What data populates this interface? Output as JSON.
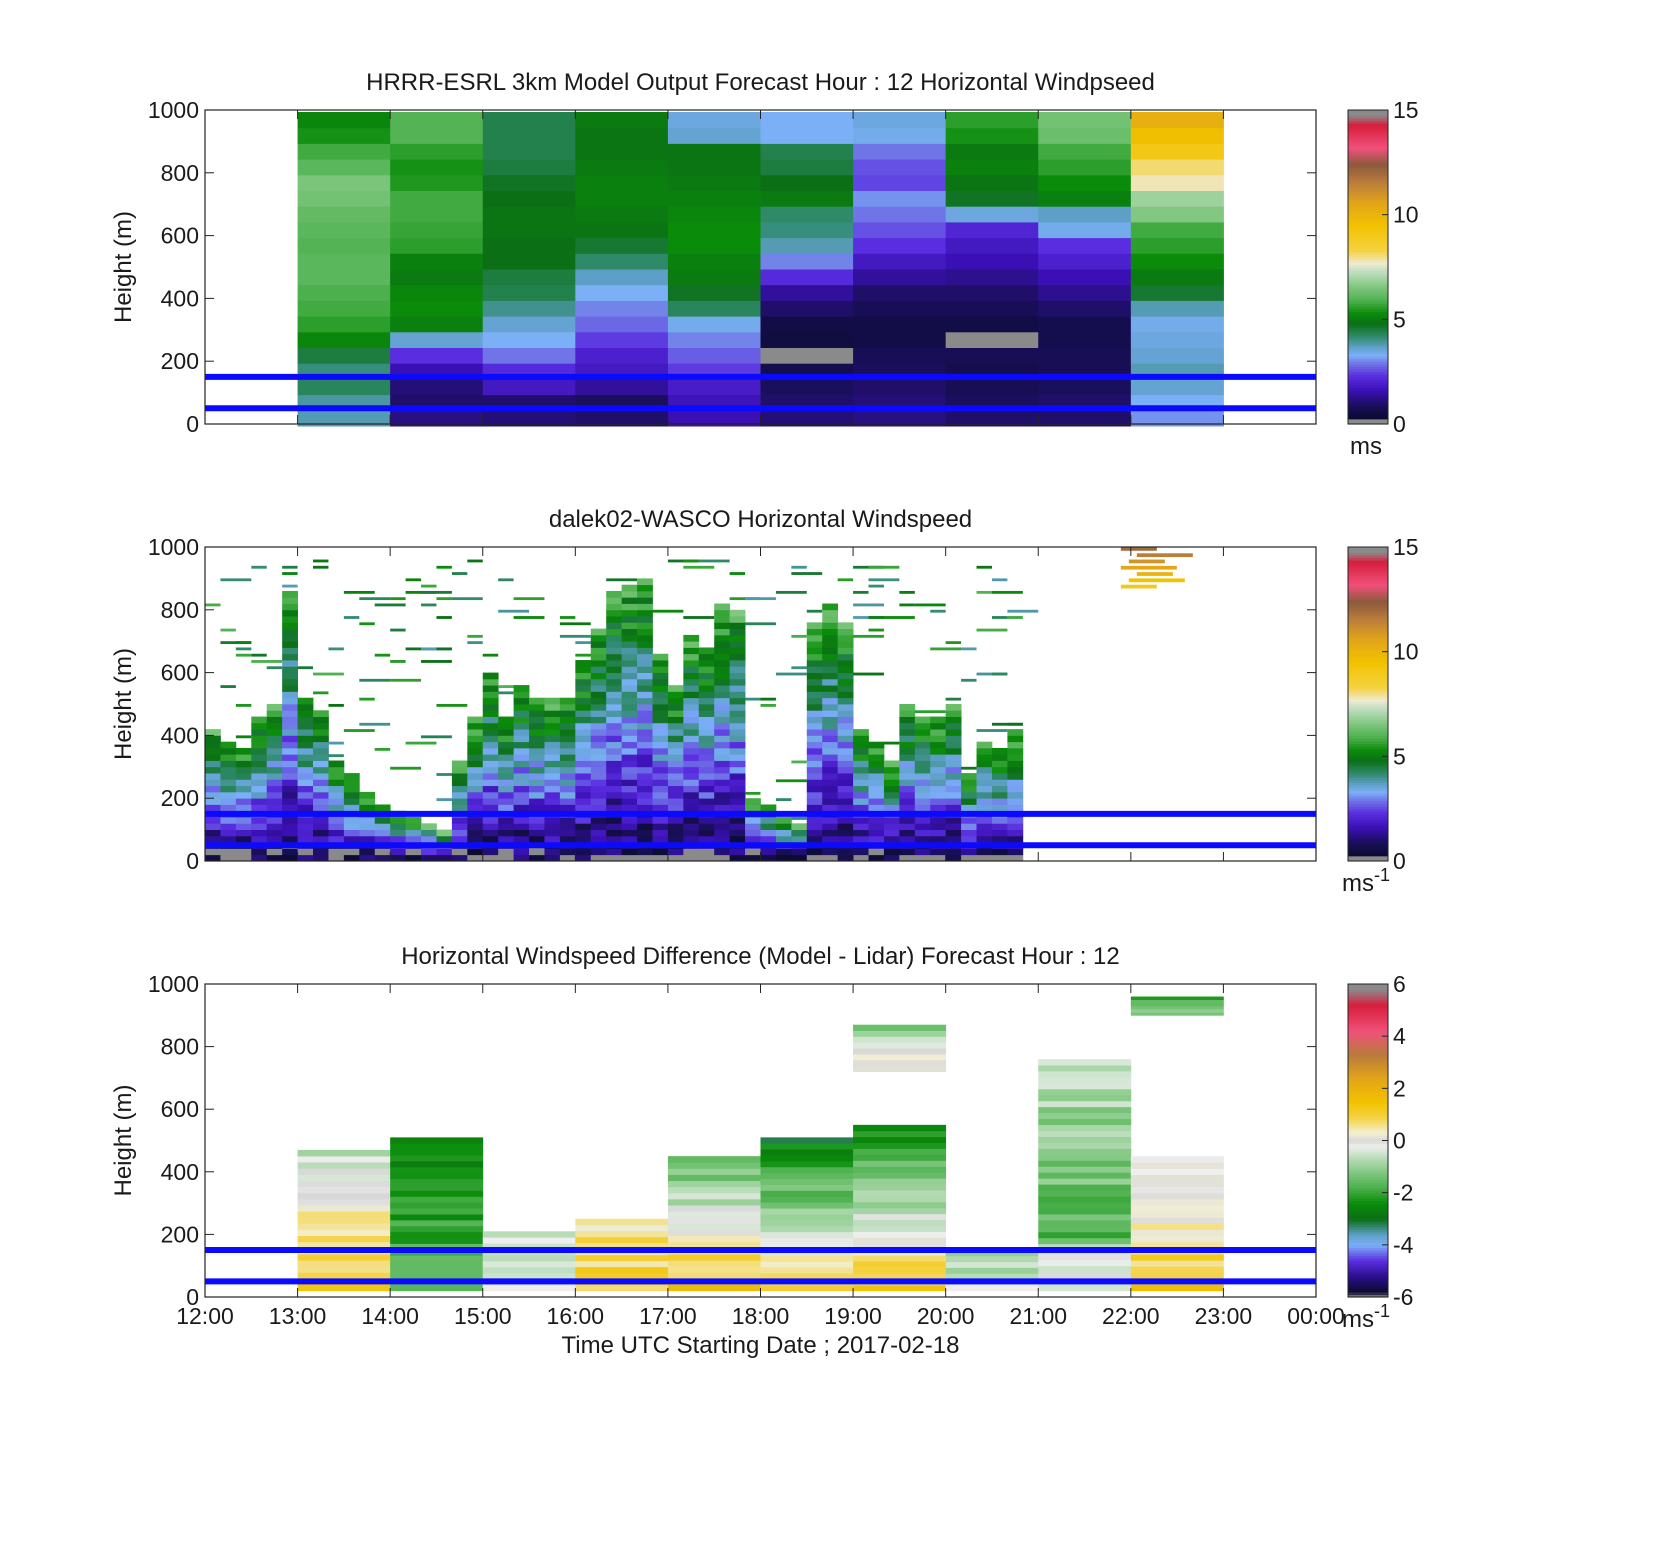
{
  "window": {
    "title": ""
  },
  "shared": {
    "xlabel": "Time UTC  Starting Date ; 2017-02-18",
    "ylabel": "Height (m)",
    "xticks": [
      "12:00",
      "13:00",
      "14:00",
      "15:00",
      "16:00",
      "17:00",
      "18:00",
      "19:00",
      "20:00",
      "21:00",
      "22:00",
      "23:00",
      "00:00"
    ],
    "yticks": [
      "0",
      "200",
      "400",
      "600",
      "800",
      "1000"
    ],
    "reference_lines_m": [
      50,
      150
    ],
    "reference_line_color": "#0a0aff"
  },
  "chart_data": [
    {
      "type": "heatmap",
      "title": "HRRR-ESRL 3km Model Output   Forecast Hour : 12 Horizontal Windpseed",
      "xlabel": "",
      "ylabel": "Height (m)",
      "ylim": [
        0,
        1000
      ],
      "colorbar": {
        "ticks": [
          "0",
          "5",
          "10",
          "15"
        ],
        "range": [
          0,
          15
        ],
        "unit_label": "ms",
        "unit_sup": ""
      },
      "cell_height_m": 50,
      "columns": [
        {
          "hour": "13:00",
          "values": [
            3.8,
            3.9,
            4.3,
            4.1,
            4.5,
            5.2,
            5.6,
            5.8,
            5.9,
            6.1,
            6.1,
            6.0,
            6.1,
            6.2,
            6.4,
            6.5,
            6.1,
            5.8,
            5.4,
            5.2
          ]
        },
        {
          "hour": "14:00",
          "values": [
            1.2,
            1.0,
            1.1,
            1.6,
            2.3,
            3.6,
            5.1,
            5.3,
            5.2,
            5.0,
            5.1,
            5.6,
            5.7,
            5.8,
            5.8,
            5.5,
            5.4,
            5.6,
            6.0,
            6.0
          ]
        },
        {
          "hour": "15:00",
          "values": [
            1.1,
            1.0,
            1.8,
            2.2,
            2.9,
            3.3,
            3.6,
            4.0,
            4.4,
            4.5,
            4.8,
            4.8,
            4.9,
            4.9,
            4.8,
            4.7,
            4.5,
            4.4,
            4.4,
            4.4
          ]
        },
        {
          "hour": "16:00",
          "values": [
            1.0,
            0.9,
            1.4,
            1.8,
            2.0,
            2.4,
            2.8,
            3.0,
            3.3,
            3.7,
            4.2,
            4.6,
            4.9,
            5.0,
            5.1,
            5.1,
            5.0,
            4.9,
            4.9,
            5.0
          ]
        },
        {
          "hour": "17:00",
          "values": [
            1.6,
            1.7,
            1.9,
            2.4,
            2.7,
            3.0,
            3.4,
            4.3,
            4.7,
            5.0,
            5.1,
            5.3,
            5.3,
            5.2,
            5.1,
            5.0,
            4.9,
            4.9,
            3.6,
            3.5
          ]
        },
        {
          "hour": "18:00",
          "values": [
            1.1,
            1.0,
            0.9,
            0.7,
            0.0,
            0.5,
            0.6,
            1.0,
            1.4,
            2.2,
            3.0,
            3.8,
            4.1,
            4.2,
            5.0,
            4.8,
            4.5,
            4.4,
            3.3,
            3.3
          ]
        },
        {
          "hour": "19:00",
          "values": [
            1.2,
            1.1,
            1.0,
            0.9,
            0.8,
            0.6,
            0.6,
            0.8,
            1.0,
            1.4,
            1.8,
            2.3,
            2.6,
            2.9,
            3.1,
            2.5,
            2.6,
            2.9,
            3.4,
            3.5
          ]
        },
        {
          "hour": "20:00",
          "values": [
            1.0,
            0.9,
            0.8,
            0.7,
            0.8,
            0.0,
            0.6,
            0.8,
            1.0,
            1.3,
            1.6,
            1.8,
            2.1,
            3.5,
            4.7,
            4.9,
            5.1,
            5.0,
            5.4,
            5.6
          ]
        },
        {
          "hour": "21:00",
          "values": [
            1.0,
            1.0,
            0.9,
            0.8,
            0.8,
            0.7,
            0.7,
            1.0,
            1.3,
            1.6,
            2.0,
            2.3,
            3.4,
            3.7,
            5.1,
            5.3,
            5.6,
            5.8,
            6.3,
            6.4
          ]
        },
        {
          "hour": "22:00",
          "values": [
            3.1,
            3.3,
            3.6,
            3.8,
            3.6,
            3.5,
            3.4,
            3.8,
            4.6,
            5.0,
            5.3,
            5.6,
            5.8,
            6.6,
            6.9,
            7.8,
            8.1,
            9.1,
            9.6,
            10.2
          ]
        }
      ]
    },
    {
      "type": "heatmap",
      "title": "dalek02-WASCO  Horizontal Windspeed",
      "xlabel": "",
      "ylabel": "Height (m)",
      "ylim": [
        0,
        1000
      ],
      "colorbar": {
        "ticks": [
          "0",
          "5",
          "10",
          "15"
        ],
        "range": [
          0,
          15
        ],
        "unit_label": "ms",
        "unit_sup": "-1"
      },
      "time_resolution_min": 10,
      "cell_height_m": 20,
      "note_values": "lidar profile tops per 10-minute step (m), wind increasing with height",
      "profile_tops_m": [
        420,
        380,
        360,
        470,
        500,
        860,
        520,
        480,
        330,
        290,
        230,
        190,
        170,
        150,
        120,
        110,
        330,
        460,
        610,
        460,
        570,
        520,
        530,
        520,
        640,
        740,
        860,
        880,
        900,
        660,
        560,
        720,
        680,
        830,
        800,
        210,
        190,
        140,
        130,
        760,
        820,
        760,
        420,
        390,
        320,
        510,
        460,
        470,
        500,
        280,
        390,
        360,
        420
      ],
      "high_speed_patch": {
        "hours": "22:00-23:00",
        "height_m": [
          860,
          1000
        ],
        "speed_ms": [
          9,
          12
        ]
      }
    },
    {
      "type": "heatmap",
      "title": "Horizontal Windspeed Difference (Model - Lidar) Forecast Hour : 12",
      "xlabel": "Time UTC  Starting Date ; 2017-02-18",
      "ylabel": "Height (m)",
      "ylim": [
        0,
        1000
      ],
      "colorbar": {
        "ticks": [
          "6",
          "4",
          "2",
          "0",
          "-2",
          "-4",
          "-6"
        ],
        "range": [
          -6,
          6
        ],
        "unit_label": "ms",
        "unit_sup": "-1"
      },
      "segments": [
        {
          "hour": "13:00",
          "height_m": [
            20,
            470
          ],
          "diff_ms": [
            1.2,
            -0.5
          ]
        },
        {
          "hour": "14:00",
          "height_m": [
            20,
            510
          ],
          "diff_ms": [
            -1.5,
            -2.7
          ]
        },
        {
          "hour": "15:00",
          "height_m": [
            20,
            210
          ],
          "diff_ms": [
            -0.2,
            -0.6
          ]
        },
        {
          "hour": "16:00",
          "height_m": [
            20,
            250
          ],
          "diff_ms": [
            1.0,
            0.6
          ]
        },
        {
          "hour": "17:00",
          "height_m": [
            20,
            450
          ],
          "diff_ms": [
            1.4,
            -1.6
          ]
        },
        {
          "hour": "18:00",
          "height_m": [
            20,
            510
          ],
          "diff_ms": [
            0.9,
            -2.8
          ]
        },
        {
          "hour": "19:00",
          "height_m": [
            20,
            550
          ],
          "diff_ms": [
            1.2,
            -2.5
          ]
        },
        {
          "hour": "19:00",
          "height_m": [
            720,
            870
          ],
          "diff_ms": [
            0.4,
            -1.2
          ]
        },
        {
          "hour": "20:00",
          "height_m": [
            20,
            150
          ],
          "diff_ms": [
            -0.4,
            -0.8
          ]
        },
        {
          "hour": "21:00",
          "height_m": [
            20,
            180
          ],
          "diff_ms": [
            -0.1,
            -0.4
          ]
        },
        {
          "hour": "21:00",
          "height_m": [
            170,
            760
          ],
          "diff_ms": [
            -1.8,
            -0.6
          ]
        },
        {
          "hour": "22:00",
          "height_m": [
            20,
            450
          ],
          "diff_ms": [
            1.2,
            -0.3
          ]
        },
        {
          "hour": "22:00",
          "height_m": [
            900,
            960
          ],
          "diff_ms": [
            -1.2,
            -1.8
          ]
        }
      ]
    }
  ]
}
